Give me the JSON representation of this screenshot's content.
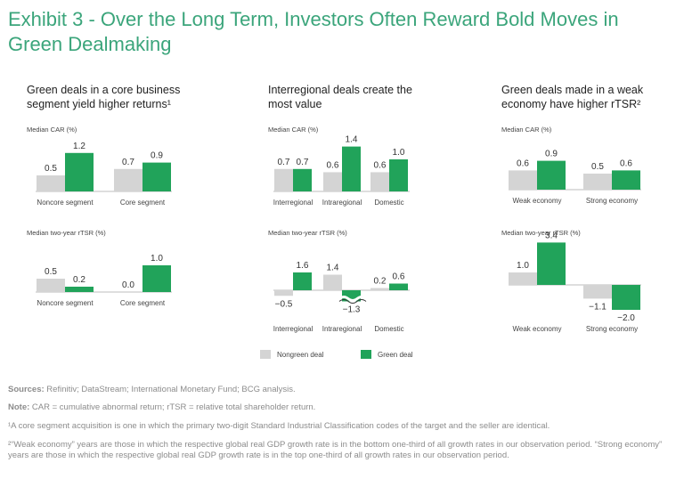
{
  "title": "Exhibit 3 - Over the Long Term, Investors Often Reward Bold Moves in Green Dealmaking",
  "colors": {
    "green": "#21a35a",
    "gray": "#d4d4d4",
    "title": "#3ba57b"
  },
  "legend": {
    "nongreen": "Nongreen deal",
    "green": "Green deal"
  },
  "chart_data": [
    {
      "type": "bar",
      "panel_title": "Green deals in a core business segment yield higher returns¹",
      "subtitle": "Median CAR (%)",
      "categories": [
        "Noncore segment",
        "Core segment"
      ],
      "series": [
        {
          "name": "Nongreen deal",
          "values": [
            0.5,
            0.7
          ],
          "labels": [
            "0.5",
            "0.7"
          ]
        },
        {
          "name": "Green deal",
          "values": [
            1.2,
            0.9
          ],
          "labels": [
            "1.2",
            "0.9"
          ]
        }
      ]
    },
    {
      "type": "bar",
      "panel_title": "Green deals in a core business segment yield higher returns¹",
      "subtitle": "Median two-year rTSR (%)",
      "categories": [
        "Noncore segment",
        "Core segment"
      ],
      "series": [
        {
          "name": "Nongreen deal",
          "values": [
            0.5,
            0.0
          ],
          "labels": [
            "0.5",
            "0.0"
          ]
        },
        {
          "name": "Green deal",
          "values": [
            0.2,
            1.0
          ],
          "labels": [
            "0.2",
            "1.0"
          ]
        }
      ]
    },
    {
      "type": "bar",
      "panel_title": "Interregional deals create the most value",
      "subtitle": "Median CAR (%)",
      "categories": [
        "Interregional",
        "Intraregional",
        "Domestic"
      ],
      "series": [
        {
          "name": "Nongreen deal",
          "values": [
            0.7,
            0.6,
            0.6
          ],
          "labels": [
            "0.7",
            "0.6",
            "0.6"
          ]
        },
        {
          "name": "Green deal",
          "values": [
            0.7,
            1.4,
            1.0
          ],
          "labels": [
            "0.7",
            "1.4",
            "1.0"
          ]
        }
      ]
    },
    {
      "type": "bar",
      "panel_title": "Interregional deals create the most value",
      "subtitle": "Median two-year rTSR (%)",
      "categories": [
        "Interregional",
        "Intraregional",
        "Domestic"
      ],
      "axis_break": true,
      "series": [
        {
          "name": "Nongreen deal",
          "values": [
            -0.5,
            1.4,
            0.2
          ],
          "labels": [
            "−0.5",
            "1.4",
            "0.2"
          ]
        },
        {
          "name": "Green deal",
          "values": [
            1.6,
            -1.3,
            0.6
          ],
          "labels": [
            "1.6",
            "−1.3",
            "0.6"
          ]
        }
      ]
    },
    {
      "type": "bar",
      "panel_title": "Green deals made in a weak economy have higher rTSR²",
      "subtitle": "Median CAR (%)",
      "categories": [
        "Weak economy",
        "Strong economy"
      ],
      "series": [
        {
          "name": "Nongreen deal",
          "values": [
            0.6,
            0.5
          ],
          "labels": [
            "0.6",
            "0.5"
          ]
        },
        {
          "name": "Green deal",
          "values": [
            0.9,
            0.6
          ],
          "labels": [
            "0.9",
            "0.6"
          ]
        }
      ]
    },
    {
      "type": "bar",
      "panel_title": "Green deals made in a weak economy have higher rTSR²",
      "subtitle": "Median two-year rTSR (%)",
      "categories": [
        "Weak economy",
        "Strong economy"
      ],
      "series": [
        {
          "name": "Nongreen deal",
          "values": [
            1.0,
            -1.1
          ],
          "labels": [
            "1.0",
            "−1.1"
          ]
        },
        {
          "name": "Green deal",
          "values": [
            3.4,
            -2.0
          ],
          "labels": [
            "3.4",
            "−2.0"
          ]
        }
      ]
    }
  ],
  "footnotes": {
    "sources_label": "Sources:",
    "sources_text": " Refinitiv; DataStream; International Monetary Fund; BCG analysis.",
    "note_label": "Note:",
    "note_text": " CAR = cumulative abnormal return; rTSR = relative total shareholder return.",
    "fn1": "¹A core segment acquisition is one in which the primary two-digit Standard Industrial Classification codes of the target and the seller are identical.",
    "fn2": "²“Weak economy” years are those in which the respective global real GDP growth rate is in the bottom one-third of all growth rates in our observation period. “Strong economy” years are those in which the respective global real GDP growth rate is in the top one-third of all growth rates in our observation period."
  }
}
